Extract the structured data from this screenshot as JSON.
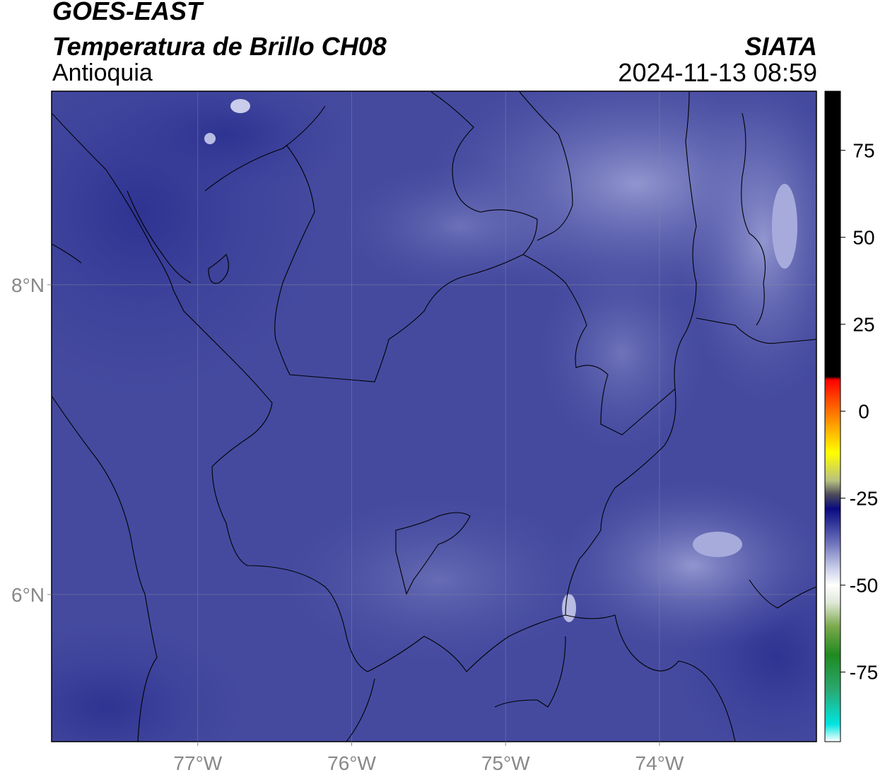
{
  "header": {
    "satellite": "GOES-EAST",
    "product": "Temperatura de Brillo CH08",
    "region": "Antioquia",
    "organization": "SIATA",
    "datetime": "2024-11-13 08:59"
  },
  "map": {
    "lon_range": [
      -77.95,
      -72.98
    ],
    "lat_range": [
      5.05,
      9.25
    ],
    "lon_ticks": [
      {
        "value": -77,
        "label": "77°W"
      },
      {
        "value": -76,
        "label": "76°W"
      },
      {
        "value": -75,
        "label": "75°W"
      },
      {
        "value": -74,
        "label": "74°W"
      }
    ],
    "lat_ticks": [
      {
        "value": 8,
        "label": "8°N"
      },
      {
        "value": 6,
        "label": "6°N"
      }
    ],
    "gridlines": true,
    "field_description": "Brightness temperature field dominated by dark/medium blue-violet tones (approx -30 to -45 °C), lighter lavender patches in the north-east and south-east"
  },
  "colorbar": {
    "range": [
      -95,
      92
    ],
    "ticks": [
      {
        "value": 75,
        "label": "75"
      },
      {
        "value": 50,
        "label": "50"
      },
      {
        "value": 25,
        "label": "25"
      },
      {
        "value": 0,
        "label": "0"
      },
      {
        "value": -25,
        "label": "-25"
      },
      {
        "value": -50,
        "label": "-50"
      },
      {
        "value": -75,
        "label": "-75"
      }
    ],
    "stops": [
      {
        "value": -95,
        "color": "#ffffff"
      },
      {
        "value": -90,
        "color": "#00e5e0"
      },
      {
        "value": -80,
        "color": "#2aa870"
      },
      {
        "value": -70,
        "color": "#1f8a1f"
      },
      {
        "value": -62,
        "color": "#7aa84a"
      },
      {
        "value": -55,
        "color": "#e0e8d8"
      },
      {
        "value": -50,
        "color": "#ffffff"
      },
      {
        "value": -45,
        "color": "#c8cce8"
      },
      {
        "value": -38,
        "color": "#6f74bc"
      },
      {
        "value": -32,
        "color": "#2e3496"
      },
      {
        "value": -28,
        "color": "#0a0a80"
      },
      {
        "value": -24,
        "color": "#4a4a5a"
      },
      {
        "value": -20,
        "color": "#b8c080"
      },
      {
        "value": -12,
        "color": "#ffff00"
      },
      {
        "value": -4,
        "color": "#ffa000"
      },
      {
        "value": 4,
        "color": "#ff4000"
      },
      {
        "value": 9,
        "color": "#ff0000"
      },
      {
        "value": 10,
        "color": "#000000"
      },
      {
        "value": 92,
        "color": "#000000"
      }
    ]
  }
}
